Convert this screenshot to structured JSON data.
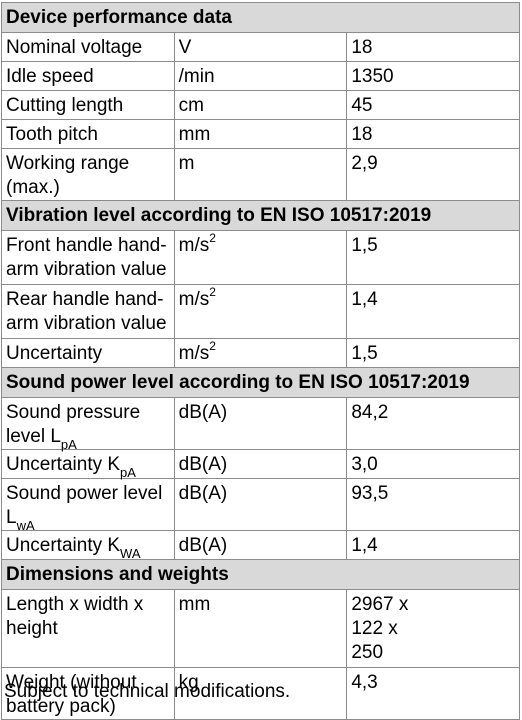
{
  "sections": {
    "performance": "Device performance data",
    "vibration": "Vibration level according to EN ISO 10517:2019",
    "sound": "Sound power level according to EN ISO 10517:2019",
    "dimensions": "Dimensions and weights"
  },
  "rows": {
    "nominal_voltage": {
      "label": "Nominal voltage",
      "unit": "V",
      "value": "18"
    },
    "idle_speed": {
      "label": "Idle speed",
      "unit": "/min",
      "value": "1350"
    },
    "cutting_length": {
      "label": "Cutting length",
      "unit": "cm",
      "value": "45"
    },
    "tooth_pitch": {
      "label": "Tooth pitch",
      "unit": "mm",
      "value": "18"
    },
    "working_range": {
      "label": "Working range (max.)",
      "unit": "m",
      "value": "2,9"
    },
    "front_handle": {
      "label": "Front handle hand-arm vibration value",
      "unit": "m/s",
      "unit_sup": "2",
      "value": "1,5"
    },
    "rear_handle": {
      "label": "Rear handle hand-arm vibration value",
      "unit": "m/s",
      "unit_sup": "2",
      "value": "1,4"
    },
    "uncertainty_vib": {
      "label": "Uncertainty",
      "unit": "m/s",
      "unit_sup": "2",
      "value": "1,5"
    },
    "sound_pressure": {
      "label": "Sound pressure level L",
      "label_sub": "pA",
      "unit": "dB(A)",
      "value": "84,2"
    },
    "uncertainty_kpa": {
      "label": "Uncertainty K",
      "label_sub": "pA",
      "unit": "dB(A)",
      "value": "3,0"
    },
    "sound_power": {
      "label": "Sound power level L",
      "label_sub": "wA",
      "unit": "dB(A)",
      "value": "93,5"
    },
    "uncertainty_kwa": {
      "label": "Uncertainty K",
      "label_sub": "WA",
      "unit": "dB(A)",
      "value": "1,4"
    },
    "dimensions_lwh": {
      "label": "Length x width x height",
      "unit": "mm",
      "value_lines": [
        "2967 x",
        "122 x",
        "250"
      ]
    },
    "weight": {
      "label": "Weight (without battery pack)",
      "unit": "kg",
      "value": "4,3"
    }
  },
  "footnote": "Subject to technical modifications."
}
